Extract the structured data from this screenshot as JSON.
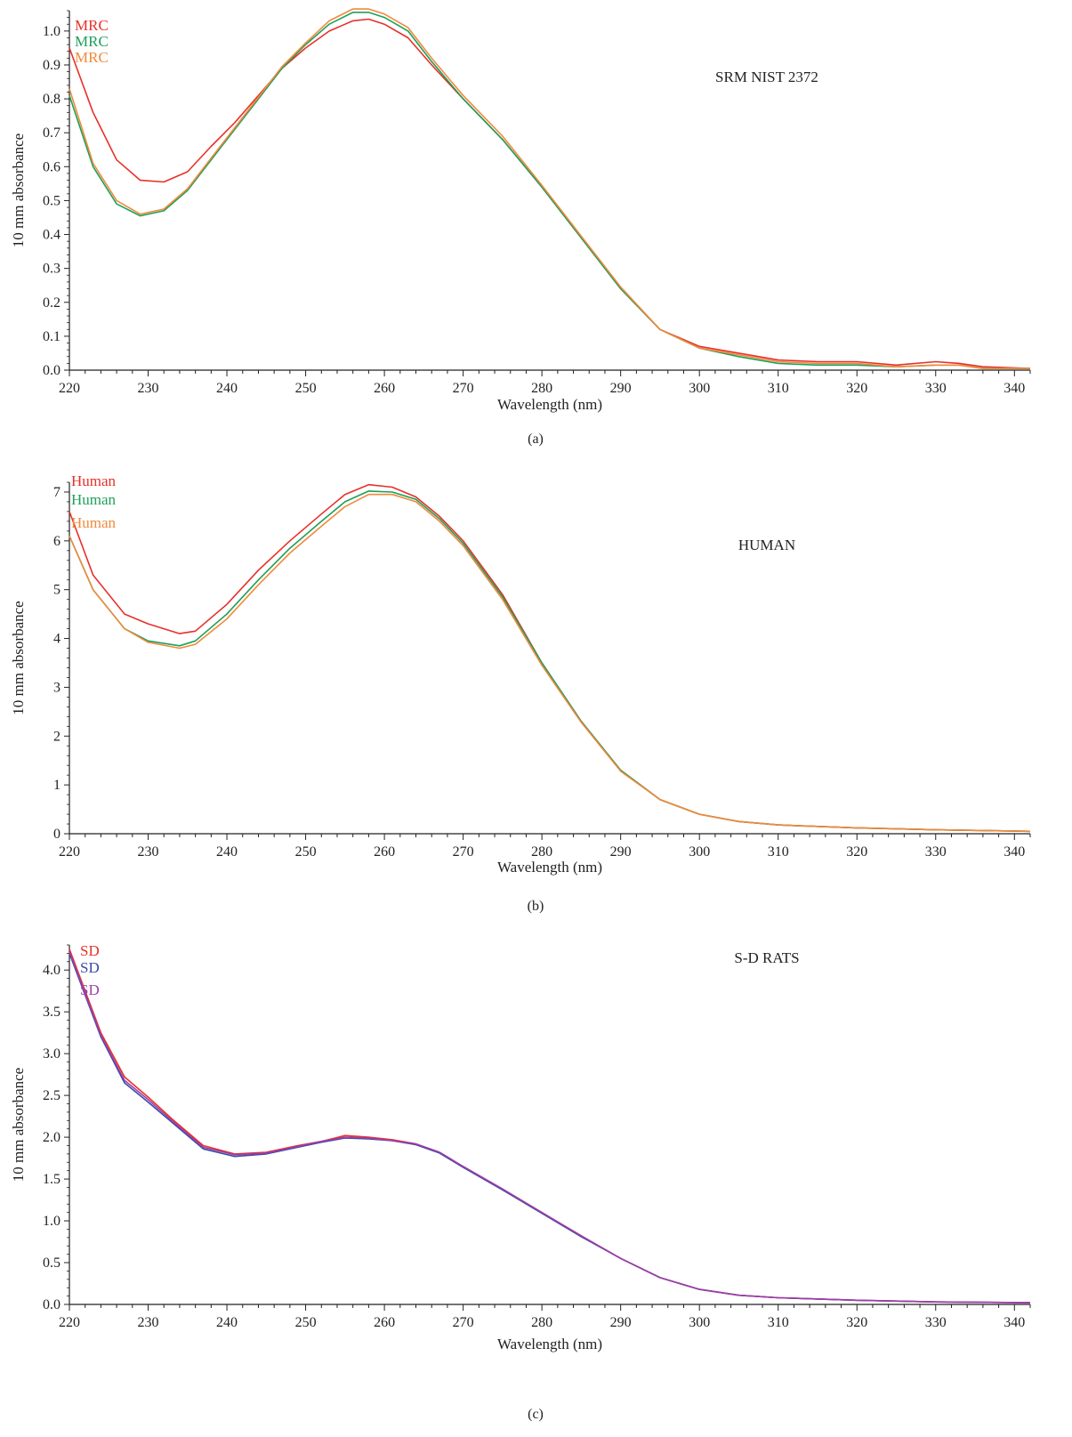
{
  "chart_data": [
    {
      "type": "line",
      "panel_label": "(a)",
      "annotation": "SRM NIST 2372",
      "xlabel": "Wavelength (nm)",
      "ylabel": "10 mm absorbance",
      "xlim": [
        220,
        342
      ],
      "ylim": [
        0,
        1.06
      ],
      "xticks": [
        "220",
        "230",
        "240",
        "250",
        "260",
        "270",
        "280",
        "290",
        "300",
        "310",
        "320",
        "330",
        "340"
      ],
      "yticks": [
        "0.0",
        "0.1",
        "0.2",
        "0.3",
        "0.4",
        "0.5",
        "0.6",
        "0.7",
        "0.8",
        "0.9",
        "1.0"
      ],
      "series": [
        {
          "name": "MRC",
          "color": "#e8302a",
          "x": [
            220,
            223,
            226,
            229,
            232,
            235,
            238,
            241,
            244,
            247,
            250,
            253,
            256,
            258,
            260,
            263,
            266,
            270,
            275,
            280,
            285,
            290,
            295,
            300,
            305,
            310,
            315,
            320,
            325,
            330,
            333,
            336,
            342
          ],
          "y": [
            0.95,
            0.76,
            0.62,
            0.56,
            0.555,
            0.585,
            0.66,
            0.73,
            0.81,
            0.89,
            0.95,
            1.0,
            1.03,
            1.035,
            1.02,
            0.98,
            0.9,
            0.8,
            0.68,
            0.54,
            0.39,
            0.24,
            0.12,
            0.07,
            0.05,
            0.03,
            0.025,
            0.025,
            0.015,
            0.025,
            0.02,
            0.01,
            0.005
          ]
        },
        {
          "name": "MRC",
          "color": "#1ea05a",
          "x": [
            220,
            223,
            226,
            229,
            232,
            235,
            238,
            241,
            244,
            247,
            250,
            253,
            256,
            258,
            260,
            263,
            266,
            270,
            275,
            280,
            285,
            290,
            295,
            300,
            305,
            310,
            315,
            320,
            325,
            330,
            333,
            336,
            342
          ],
          "y": [
            0.81,
            0.6,
            0.49,
            0.455,
            0.47,
            0.53,
            0.62,
            0.71,
            0.8,
            0.89,
            0.96,
            1.02,
            1.055,
            1.055,
            1.04,
            1.0,
            0.91,
            0.8,
            0.68,
            0.54,
            0.39,
            0.24,
            0.12,
            0.065,
            0.04,
            0.02,
            0.015,
            0.015,
            0.01,
            0.015,
            0.015,
            0.005,
            0.005
          ]
        },
        {
          "name": "MRC",
          "color": "#f08a3c",
          "x": [
            220,
            223,
            226,
            229,
            232,
            235,
            238,
            241,
            244,
            247,
            250,
            253,
            256,
            258,
            260,
            263,
            266,
            270,
            275,
            280,
            285,
            290,
            295,
            300,
            305,
            310,
            315,
            320,
            325,
            330,
            333,
            336,
            342
          ],
          "y": [
            0.83,
            0.61,
            0.5,
            0.46,
            0.475,
            0.535,
            0.625,
            0.715,
            0.805,
            0.895,
            0.965,
            1.03,
            1.065,
            1.065,
            1.05,
            1.01,
            0.92,
            0.81,
            0.69,
            0.545,
            0.395,
            0.245,
            0.12,
            0.065,
            0.045,
            0.025,
            0.02,
            0.02,
            0.01,
            0.015,
            0.015,
            0.005,
            0.005
          ]
        }
      ]
    },
    {
      "type": "line",
      "panel_label": "(b)",
      "annotation": "HUMAN",
      "xlabel": "Wavelength (nm)",
      "ylabel": "10 mm absorbance",
      "xlim": [
        220,
        342
      ],
      "ylim": [
        0,
        7.2
      ],
      "xticks": [
        "220",
        "230",
        "240",
        "250",
        "260",
        "270",
        "280",
        "290",
        "300",
        "310",
        "320",
        "330",
        "340"
      ],
      "yticks": [
        "0",
        "1",
        "2",
        "3",
        "4",
        "5",
        "6",
        "7"
      ],
      "series": [
        {
          "name": "Human",
          "color": "#e8302a",
          "x": [
            220,
            223,
            227,
            230,
            234,
            236,
            240,
            244,
            248,
            252,
            255,
            258,
            261,
            264,
            267,
            270,
            275,
            280,
            285,
            290,
            295,
            300,
            305,
            310,
            315,
            320,
            330,
            342
          ],
          "y": [
            6.6,
            5.3,
            4.5,
            4.3,
            4.1,
            4.15,
            4.7,
            5.4,
            6.0,
            6.55,
            6.95,
            7.15,
            7.1,
            6.9,
            6.5,
            6.0,
            4.9,
            3.5,
            2.3,
            1.3,
            0.7,
            0.4,
            0.25,
            0.18,
            0.15,
            0.12,
            0.08,
            0.05
          ]
        },
        {
          "name": "Human",
          "color": "#1ea05a",
          "x": [
            220,
            223,
            227,
            230,
            234,
            236,
            240,
            244,
            248,
            252,
            255,
            258,
            261,
            264,
            267,
            270,
            275,
            280,
            285,
            290,
            295,
            300,
            305,
            310,
            315,
            320,
            330,
            342
          ],
          "y": [
            6.1,
            5.0,
            4.2,
            3.95,
            3.85,
            3.95,
            4.5,
            5.2,
            5.85,
            6.4,
            6.8,
            7.02,
            7.0,
            6.85,
            6.45,
            5.95,
            4.85,
            3.5,
            2.3,
            1.3,
            0.7,
            0.4,
            0.25,
            0.18,
            0.15,
            0.12,
            0.08,
            0.05
          ]
        },
        {
          "name": "Human",
          "color": "#f08a3c",
          "x": [
            220,
            223,
            227,
            230,
            234,
            236,
            240,
            244,
            248,
            252,
            255,
            258,
            261,
            264,
            267,
            270,
            275,
            280,
            285,
            290,
            295,
            300,
            305,
            310,
            315,
            320,
            330,
            342
          ],
          "y": [
            6.1,
            5.0,
            4.2,
            3.92,
            3.8,
            3.88,
            4.4,
            5.1,
            5.75,
            6.3,
            6.7,
            6.95,
            6.95,
            6.8,
            6.4,
            5.9,
            4.8,
            3.45,
            2.28,
            1.28,
            0.7,
            0.4,
            0.25,
            0.18,
            0.15,
            0.12,
            0.08,
            0.05
          ]
        }
      ]
    },
    {
      "type": "line",
      "panel_label": "(c)",
      "annotation": "S-D RATS",
      "xlabel": "Wavelength (nm)",
      "ylabel": "10 mm absorbance",
      "xlim": [
        220,
        342
      ],
      "ylim": [
        0,
        4.3
      ],
      "xticks": [
        "220",
        "230",
        "240",
        "250",
        "260",
        "270",
        "280",
        "290",
        "300",
        "310",
        "320",
        "330",
        "340"
      ],
      "yticks": [
        "0.0",
        "0.5",
        "1.0",
        "1.5",
        "2.0",
        "2.5",
        "3.0",
        "3.5",
        "4.0"
      ],
      "series": [
        {
          "name": "SD",
          "color": "#e8302a",
          "x": [
            220,
            222,
            224,
            227,
            230,
            233,
            237,
            241,
            245,
            249,
            252,
            255,
            258,
            261,
            264,
            267,
            270,
            275,
            280,
            285,
            290,
            295,
            300,
            305,
            310,
            320,
            330,
            342
          ],
          "y": [
            4.25,
            3.75,
            3.25,
            2.72,
            2.48,
            2.22,
            1.9,
            1.8,
            1.82,
            1.9,
            1.95,
            2.02,
            2.0,
            1.97,
            1.92,
            1.82,
            1.65,
            1.38,
            1.1,
            0.82,
            0.55,
            0.32,
            0.18,
            0.11,
            0.08,
            0.05,
            0.03,
            0.02
          ]
        },
        {
          "name": "SD",
          "color": "#3a4aa8",
          "x": [
            220,
            222,
            224,
            227,
            230,
            233,
            237,
            241,
            245,
            249,
            252,
            255,
            258,
            261,
            264,
            267,
            270,
            275,
            280,
            285,
            290,
            295,
            300,
            305,
            310,
            320,
            330,
            342
          ],
          "y": [
            4.2,
            3.7,
            3.2,
            2.65,
            2.42,
            2.18,
            1.86,
            1.77,
            1.8,
            1.88,
            1.94,
            1.99,
            1.98,
            1.96,
            1.91,
            1.81,
            1.64,
            1.37,
            1.09,
            0.81,
            0.55,
            0.32,
            0.18,
            0.11,
            0.08,
            0.05,
            0.03,
            0.02
          ]
        },
        {
          "name": "SD",
          "color": "#9c3ea8",
          "x": [
            220,
            222,
            224,
            227,
            230,
            233,
            237,
            241,
            245,
            249,
            252,
            255,
            258,
            261,
            264,
            267,
            270,
            275,
            280,
            285,
            290,
            295,
            300,
            305,
            310,
            320,
            330,
            342
          ],
          "y": [
            4.22,
            3.72,
            3.22,
            2.68,
            2.45,
            2.2,
            1.88,
            1.79,
            1.81,
            1.89,
            1.95,
            2.0,
            1.99,
            1.96,
            1.92,
            1.82,
            1.65,
            1.38,
            1.1,
            0.82,
            0.55,
            0.32,
            0.18,
            0.11,
            0.08,
            0.05,
            0.03,
            0.02
          ]
        }
      ]
    }
  ]
}
